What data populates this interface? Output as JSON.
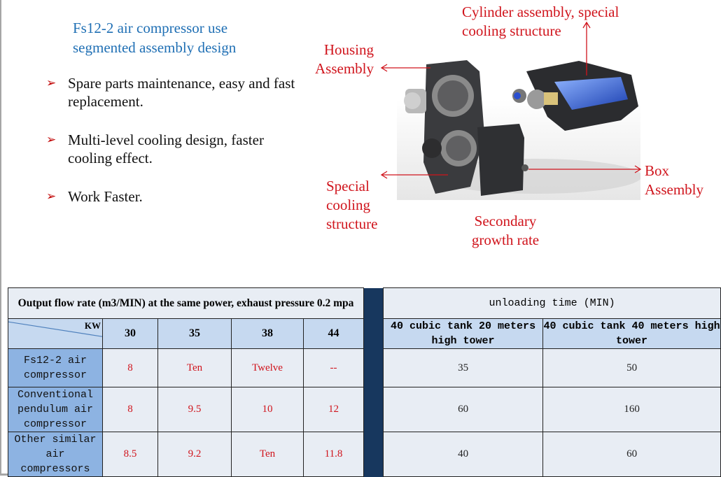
{
  "title": [
    "Fs12-2 air compressor use",
    "segmented assembly design"
  ],
  "bullets": [
    {
      "icon": "arrow-bullet-icon",
      "text": "Spare parts maintenance, easy and fast replacement."
    },
    {
      "icon": "arrow-bullet-icon",
      "text": "Multi-level cooling design, faster cooling effect."
    },
    {
      "icon": "arrow-bullet-icon",
      "text": "Work Faster."
    }
  ],
  "labels": {
    "cylinder": [
      "Cylinder assembly, special",
      "cooling structure"
    ],
    "housing": [
      "Housing",
      "Assembly"
    ],
    "box": [
      "Box",
      "Assembly"
    ],
    "special": [
      "Special",
      "cooling",
      "structure"
    ],
    "secondary": [
      "Secondary",
      "growth rate"
    ]
  },
  "table": {
    "left_header": "Output flow rate (m3/MIN) at the same power, exhaust pressure 0.2 mpa",
    "right_header": "unloading time (MIN)",
    "kw_label": "KW",
    "kw_columns": [
      "30",
      "35",
      "38",
      "44"
    ],
    "time_columns": [
      "40 cubic tank 20 meters high tower",
      "40 cubic tank 40 meters high tower"
    ],
    "rows": [
      {
        "name": "Fs12-2 air compressor",
        "flow": [
          "8",
          "Ten",
          "Twelve",
          "--"
        ],
        "time": [
          "35",
          "50"
        ]
      },
      {
        "name": "Conventional pendulum air compressor",
        "flow": [
          "8",
          "9.5",
          "10",
          "12"
        ],
        "time": [
          "60",
          "160"
        ]
      },
      {
        "name": "Other similar air compressors",
        "flow": [
          "8.5",
          "9.2",
          "Ten",
          "11.8"
        ],
        "time": [
          "40",
          "60"
        ]
      }
    ]
  },
  "colors": {
    "title": "#1f6fb4",
    "label_red": "#d0141c",
    "header_blue": "#c6d9f0",
    "row_label_blue": "#8db3e2",
    "divider_navy": "#17375e"
  }
}
